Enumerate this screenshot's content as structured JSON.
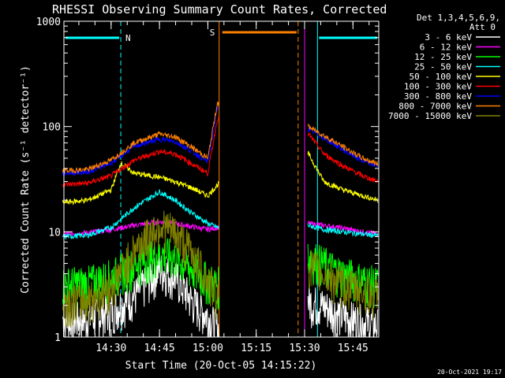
{
  "chart_data": {
    "type": "line",
    "title": "RHESSI Observing Summary Count Rates, Corrected",
    "xlabel": "Start Time (20-Oct-05 14:15:22)",
    "ylabel": "Corrected Count Rate (s⁻¹ detector⁻¹)",
    "ylim": [
      1,
      1000
    ],
    "yscale": "log",
    "xlim": [
      "14:15:22",
      "15:53:00"
    ],
    "x_ticks": [
      "14:30",
      "14:45",
      "15:00",
      "15:15",
      "15:30",
      "15:45"
    ],
    "y_ticks": [
      "1",
      "10",
      "100",
      "1000"
    ],
    "legend_position": "right",
    "legend_header": [
      "Det 1,3,4,5,6,9,",
      "Att 0"
    ],
    "footer": "20-Oct-2021 19:17",
    "flags": [
      {
        "label": "N",
        "color": "#00ffff",
        "intervals": [
          [
            "14:15:22",
            "14:33:00"
          ],
          [
            "15:34:00",
            "15:53:00"
          ]
        ]
      },
      {
        "label": "S",
        "color": "#ff8000",
        "intervals": [
          [
            "15:04:00",
            "15:28:00"
          ]
        ]
      }
    ],
    "markers": [
      {
        "time": "14:33:00",
        "color": "#00ffff",
        "style": "dashed"
      },
      {
        "time": "15:34:00",
        "color": "#00ffff",
        "style": "solid"
      },
      {
        "time": "15:53:00",
        "color": "#00ffff",
        "style": "dashed"
      },
      {
        "time": "15:03:30",
        "color": "#ff8000",
        "style": "solid"
      },
      {
        "time": "15:28:00",
        "color": "#ff8000",
        "style": "dashed"
      },
      {
        "time": "15:30:00",
        "color": "#ff00ff",
        "style": "solid"
      }
    ],
    "data_gap": [
      "15:03:30",
      "15:31:00"
    ],
    "series": [
      {
        "name": "3 - 6 keV",
        "color": "#ffffff",
        "values": [
          [
            14.25,
            1.5
          ],
          [
            14.38,
            1.5
          ],
          [
            14.5,
            1.8
          ],
          [
            14.62,
            2.5
          ],
          [
            14.75,
            4.5
          ],
          [
            14.83,
            3.8
          ],
          [
            14.92,
            2.2
          ],
          [
            15.0,
            1.6
          ],
          [
            15.05,
            1.2
          ],
          [
            15.52,
            2.2
          ],
          [
            15.6,
            2.0
          ],
          [
            15.7,
            1.6
          ],
          [
            15.8,
            1.4
          ],
          [
            15.88,
            1.3
          ]
        ]
      },
      {
        "name": "6 - 12 keV",
        "color": "#ff00ff",
        "values": [
          [
            14.25,
            9.5
          ],
          [
            14.38,
            9.8
          ],
          [
            14.5,
            10.5
          ],
          [
            14.62,
            11.5
          ],
          [
            14.75,
            12.5
          ],
          [
            14.83,
            12.0
          ],
          [
            14.92,
            11.2
          ],
          [
            15.0,
            10.5
          ],
          [
            15.05,
            11.0
          ],
          [
            15.52,
            12.0
          ],
          [
            15.6,
            11.5
          ],
          [
            15.7,
            10.8
          ],
          [
            15.8,
            10.0
          ],
          [
            15.88,
            9.5
          ]
        ]
      },
      {
        "name": "12 - 25 keV",
        "color": "#00ff00",
        "values": [
          [
            14.25,
            3.2
          ],
          [
            14.38,
            3.3
          ],
          [
            14.5,
            3.8
          ],
          [
            14.62,
            5.0
          ],
          [
            14.75,
            6.3
          ],
          [
            14.83,
            5.8
          ],
          [
            14.92,
            4.5
          ],
          [
            15.0,
            3.5
          ],
          [
            15.05,
            3.2
          ],
          [
            15.52,
            6.0
          ],
          [
            15.6,
            5.0
          ],
          [
            15.7,
            4.0
          ],
          [
            15.8,
            3.5
          ],
          [
            15.88,
            3.2
          ]
        ]
      },
      {
        "name": "25 - 50 keV",
        "color": "#00ffff",
        "values": [
          [
            14.25,
            9.0
          ],
          [
            14.38,
            9.3
          ],
          [
            14.5,
            11.0
          ],
          [
            14.62,
            17.0
          ],
          [
            14.75,
            24.0
          ],
          [
            14.83,
            20.0
          ],
          [
            14.92,
            15.0
          ],
          [
            15.0,
            12.0
          ],
          [
            15.05,
            11.0
          ],
          [
            15.52,
            11.5
          ],
          [
            15.6,
            10.5
          ],
          [
            15.7,
            10.0
          ],
          [
            15.8,
            9.5
          ],
          [
            15.88,
            9.2
          ]
        ]
      },
      {
        "name": "50 - 100 keV",
        "color": "#ffff00",
        "values": [
          [
            14.25,
            19.0
          ],
          [
            14.38,
            20.0
          ],
          [
            14.5,
            25.0
          ],
          [
            14.55,
            45.0
          ],
          [
            14.62,
            36.0
          ],
          [
            14.75,
            33.0
          ],
          [
            14.83,
            30.0
          ],
          [
            14.92,
            26.0
          ],
          [
            15.0,
            22.0
          ],
          [
            15.05,
            28.0
          ],
          [
            15.52,
            55.0
          ],
          [
            15.6,
            30.0
          ],
          [
            15.7,
            25.0
          ],
          [
            15.8,
            22.0
          ],
          [
            15.88,
            20.0
          ]
        ]
      },
      {
        "name": "100 - 300 keV",
        "color": "#ff0000",
        "values": [
          [
            14.25,
            28.0
          ],
          [
            14.38,
            29.0
          ],
          [
            14.5,
            34.0
          ],
          [
            14.62,
            48.0
          ],
          [
            14.75,
            58.0
          ],
          [
            14.83,
            55.0
          ],
          [
            14.92,
            44.0
          ],
          [
            15.0,
            36.0
          ],
          [
            15.05,
            120.0
          ],
          [
            15.52,
            85.0
          ],
          [
            15.6,
            55.0
          ],
          [
            15.7,
            42.0
          ],
          [
            15.8,
            34.0
          ],
          [
            15.88,
            30.0
          ]
        ]
      },
      {
        "name": "300 - 800 keV",
        "color": "#0000ff",
        "values": [
          [
            14.25,
            36.0
          ],
          [
            14.38,
            37.0
          ],
          [
            14.5,
            45.0
          ],
          [
            14.62,
            65.0
          ],
          [
            14.75,
            76.0
          ],
          [
            14.83,
            72.0
          ],
          [
            14.92,
            58.0
          ],
          [
            15.0,
            46.0
          ],
          [
            15.05,
            150.0
          ],
          [
            15.52,
            95.0
          ],
          [
            15.6,
            78.0
          ],
          [
            15.7,
            60.0
          ],
          [
            15.8,
            47.0
          ],
          [
            15.88,
            42.0
          ]
        ]
      },
      {
        "name": "800 - 7000 keV",
        "color": "#ff8000",
        "values": [
          [
            14.25,
            38.0
          ],
          [
            14.38,
            39.0
          ],
          [
            14.5,
            48.0
          ],
          [
            14.62,
            70.0
          ],
          [
            14.75,
            85.0
          ],
          [
            14.83,
            80.0
          ],
          [
            14.92,
            63.0
          ],
          [
            15.0,
            50.0
          ],
          [
            15.05,
            170.0
          ],
          [
            15.52,
            100.0
          ],
          [
            15.6,
            82.0
          ],
          [
            15.7,
            64.0
          ],
          [
            15.8,
            50.0
          ],
          [
            15.88,
            44.0
          ]
        ]
      },
      {
        "name": "7000 - 15000 keV",
        "color": "#808000",
        "values": [
          [
            14.25,
            2.2
          ],
          [
            14.38,
            2.3
          ],
          [
            14.5,
            3.0
          ],
          [
            14.62,
            7.0
          ],
          [
            14.75,
            12.0
          ],
          [
            14.83,
            10.0
          ],
          [
            14.92,
            6.5
          ],
          [
            15.0,
            3.5
          ],
          [
            15.05,
            2.5
          ],
          [
            15.52,
            5.0
          ],
          [
            15.6,
            4.0
          ],
          [
            15.7,
            3.2
          ],
          [
            15.8,
            2.8
          ],
          [
            15.88,
            2.5
          ]
        ]
      }
    ]
  }
}
